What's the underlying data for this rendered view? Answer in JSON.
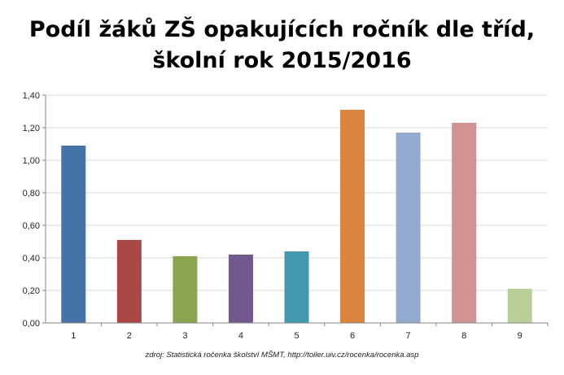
{
  "chart_data": {
    "type": "bar",
    "title": [
      "Podíl žáků ZŠ opakujících ročník dle tříd,",
      "školní rok 2015/2016"
    ],
    "categories": [
      "1",
      "2",
      "3",
      "4",
      "5",
      "6",
      "7",
      "8",
      "9"
    ],
    "values": [
      1.09,
      0.51,
      0.41,
      0.42,
      0.44,
      1.31,
      1.17,
      1.23,
      0.21
    ],
    "colors": [
      "#4572A7",
      "#AA4643",
      "#89A54E",
      "#71588F",
      "#4198AF",
      "#DB843D",
      "#93A9CF",
      "#D19392",
      "#B9CD96"
    ],
    "yticks": [
      "0,00",
      "0,20",
      "0,40",
      "0,60",
      "0,80",
      "1,00",
      "1,20",
      "1,40"
    ],
    "ylim": [
      0,
      1.4
    ],
    "grid": true,
    "legend": "none",
    "xlabel": "",
    "ylabel": ""
  },
  "source": "zdroj: Statistická ročenka školství MŠMT, http://toiler.uiv.cz/rocenka/rocenka.asp"
}
